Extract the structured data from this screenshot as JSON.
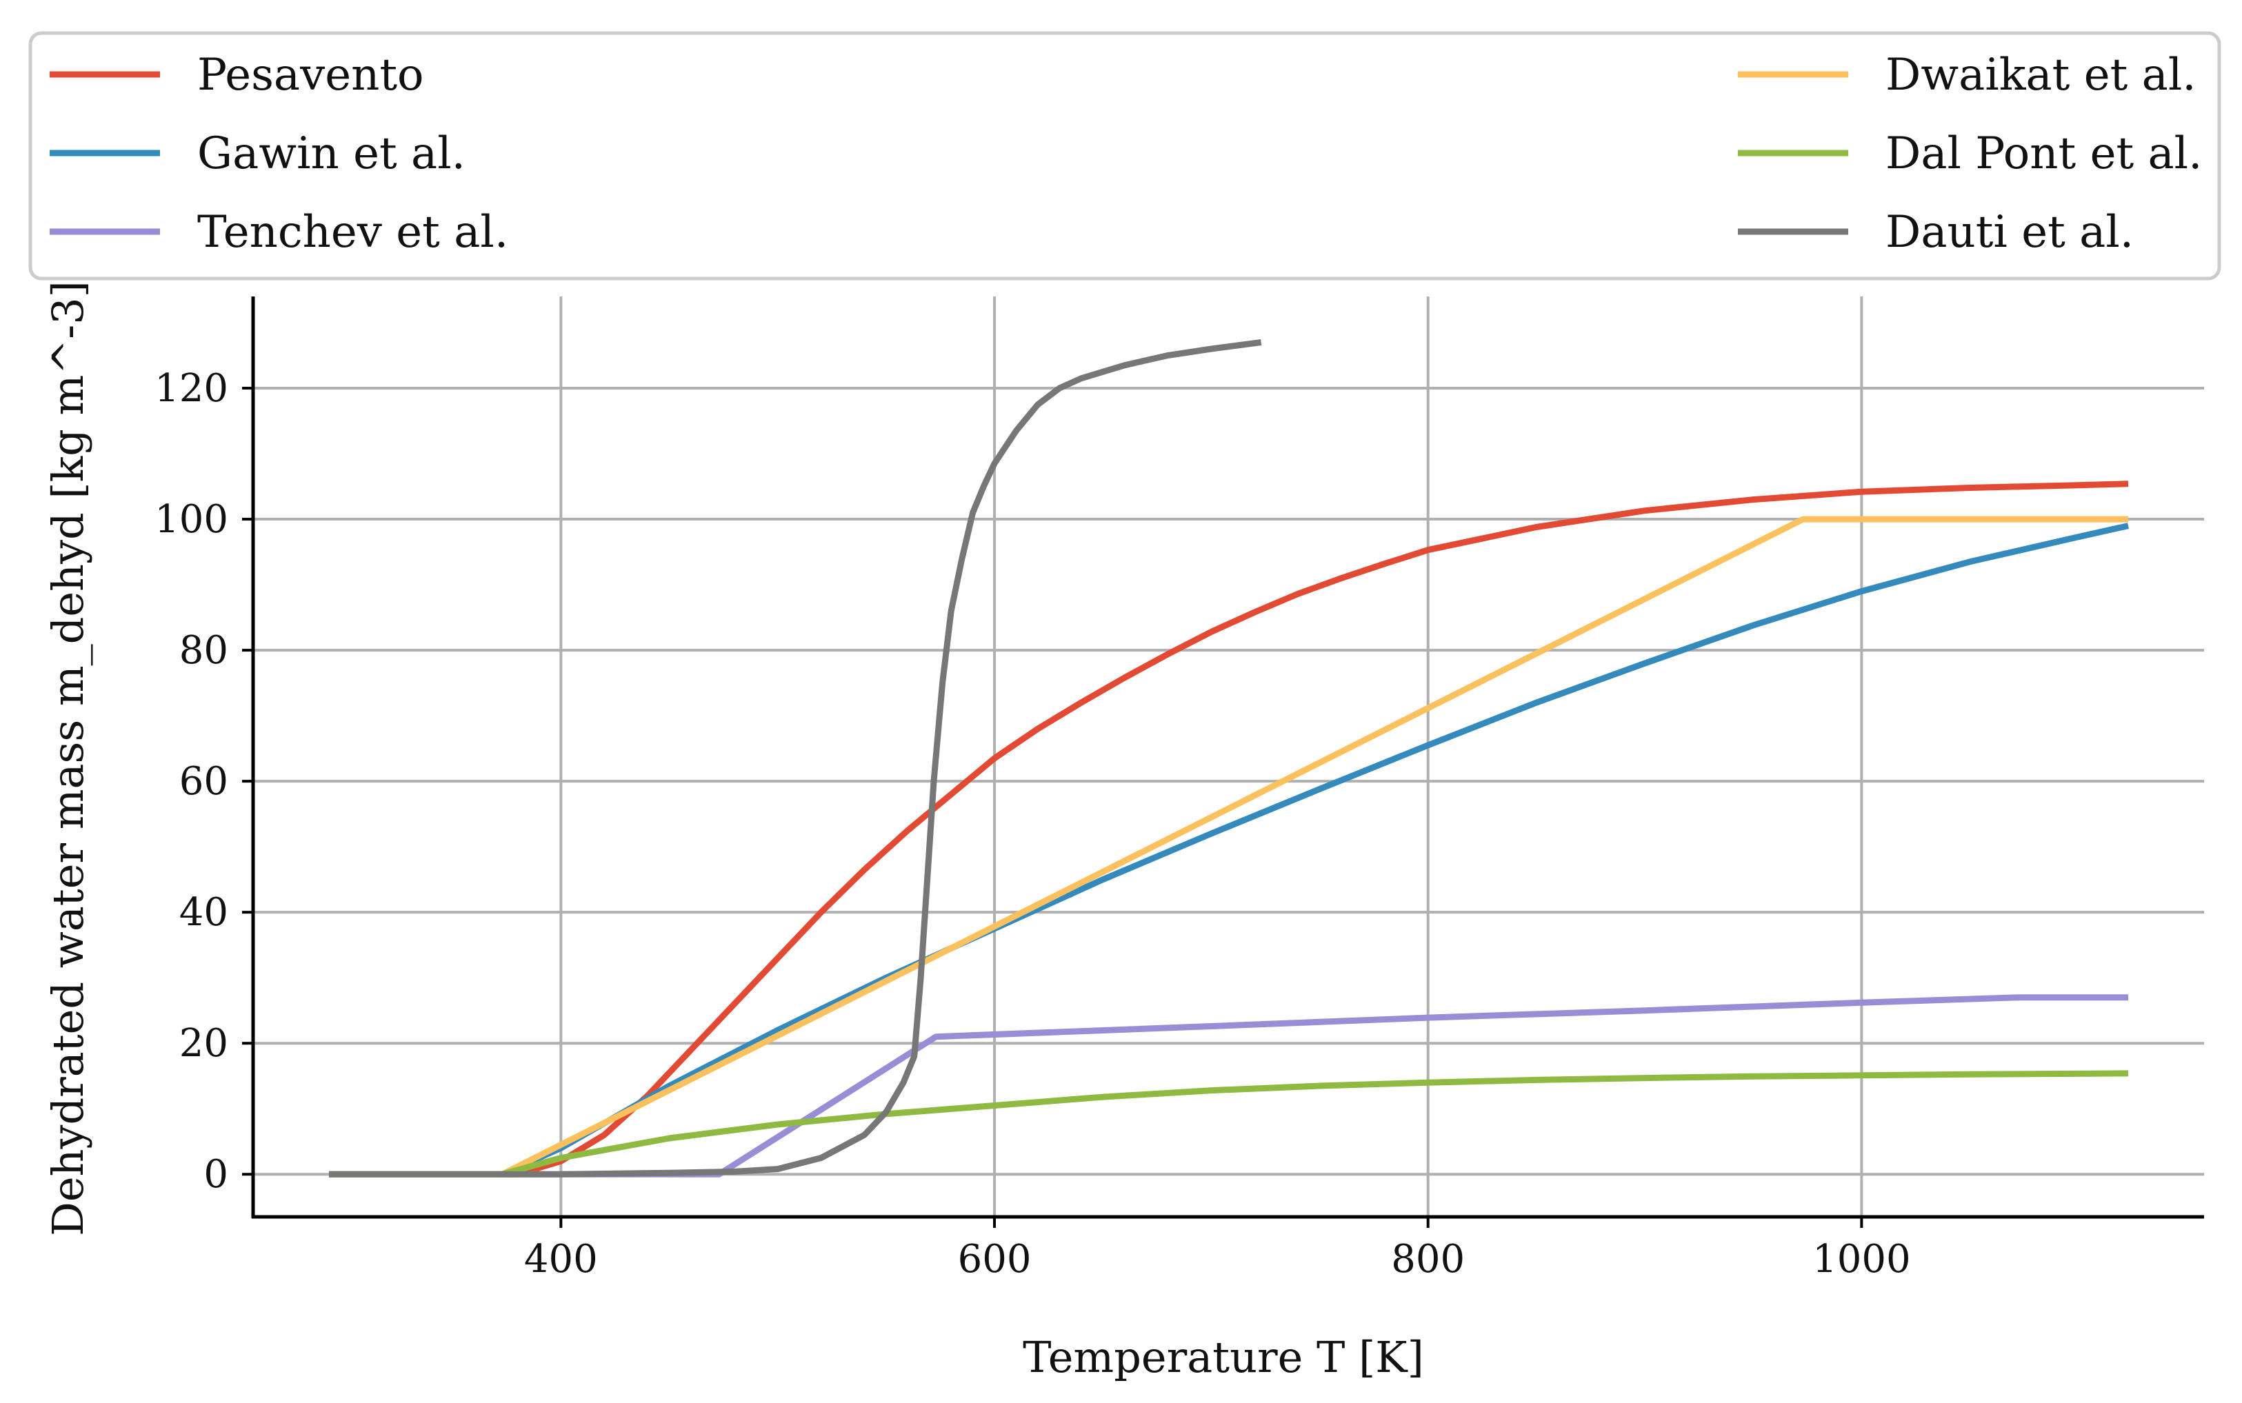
{
  "chart_data": {
    "type": "line",
    "xlabel": "Temperature T [K]",
    "ylabel": "Dehydrated water mass m_dehyd [kg m^-3]",
    "xlim": [
      258,
      1158
    ],
    "ylim": [
      -6.5,
      134
    ],
    "xticks": [
      400,
      600,
      800,
      1000
    ],
    "yticks": [
      0,
      20,
      40,
      60,
      80,
      100,
      120
    ],
    "grid": true,
    "legend_position": "top (above plot, two columns)",
    "series": [
      {
        "name": "Pesavento",
        "color": "#e24a33",
        "x": [
          293,
          380,
          400,
          420,
          440,
          460,
          480,
          500,
          520,
          540,
          560,
          580,
          600,
          620,
          640,
          660,
          680,
          700,
          720,
          740,
          760,
          780,
          800,
          850,
          900,
          950,
          1000,
          1050,
          1100,
          1123
        ],
        "y": [
          0,
          0,
          2,
          6,
          12,
          19,
          26,
          33,
          40,
          46.5,
          52.5,
          58,
          63.5,
          68,
          72,
          75.8,
          79.4,
          82.8,
          85.8,
          88.6,
          91,
          93.2,
          95.3,
          98.8,
          101.3,
          103,
          104.2,
          104.8,
          105.2,
          105.4
        ]
      },
      {
        "name": "Gawin et al.",
        "color": "#348abd",
        "x": [
          293,
          373,
          400,
          450,
          500,
          550,
          600,
          650,
          700,
          750,
          800,
          850,
          900,
          950,
          1000,
          1050,
          1100,
          1123
        ],
        "y": [
          0,
          0,
          4,
          13.5,
          22,
          30,
          37.5,
          45,
          52,
          58.8,
          65.5,
          72,
          78,
          83.8,
          89,
          93.5,
          97.3,
          99
        ]
      },
      {
        "name": "Tenchev et al.",
        "color": "#988ed5",
        "x": [
          293,
          473,
          573,
          700,
          800,
          900,
          1000,
          1073,
          1123
        ],
        "y": [
          0,
          0,
          21,
          22.6,
          23.9,
          25,
          26.2,
          27,
          27
        ]
      },
      {
        "name": "Dwaikat et al.",
        "color": "#fbc15e",
        "x": [
          293,
          373,
          973,
          1123
        ],
        "y": [
          0,
          0,
          100,
          100
        ]
      },
      {
        "name": "Dal Pont et al.",
        "color": "#8eba42",
        "x": [
          293,
          373,
          400,
          450,
          500,
          550,
          600,
          650,
          700,
          750,
          800,
          850,
          900,
          950,
          1000,
          1050,
          1100,
          1123
        ],
        "y": [
          0,
          0,
          2.5,
          5.5,
          7.6,
          9.2,
          10.5,
          11.8,
          12.8,
          13.5,
          14,
          14.4,
          14.7,
          14.95,
          15.1,
          15.25,
          15.35,
          15.4
        ]
      },
      {
        "name": "Dauti et al.",
        "color": "#777777",
        "x": [
          293,
          400,
          450,
          480,
          500,
          520,
          540,
          550,
          558,
          563,
          566,
          569,
          572,
          576,
          580,
          585,
          590,
          595,
          600,
          610,
          620,
          630,
          640,
          660,
          680,
          700,
          723
        ],
        "y": [
          0,
          0,
          0.2,
          0.4,
          0.8,
          2.5,
          6,
          9.5,
          14,
          18,
          30,
          45,
          60,
          75,
          86,
          94,
          101,
          105,
          108.5,
          113.5,
          117.5,
          120,
          121.5,
          123.5,
          125,
          126,
          127
        ]
      }
    ]
  }
}
